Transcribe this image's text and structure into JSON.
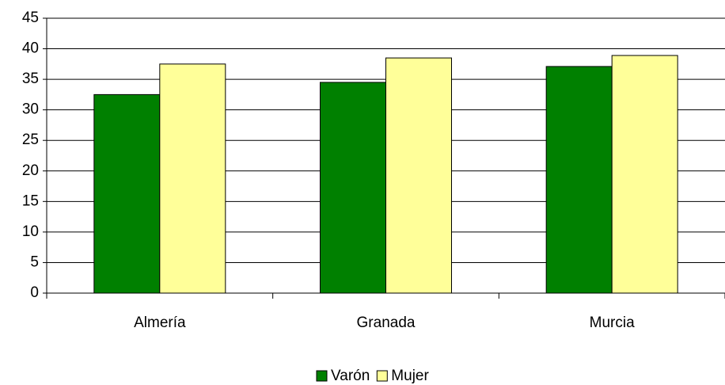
{
  "chart_data": {
    "type": "bar",
    "categories": [
      "Almería",
      "Granada",
      "Murcia"
    ],
    "series": [
      {
        "name": "Varón",
        "color": "#008000",
        "values": [
          32.5,
          34.5,
          37.1
        ]
      },
      {
        "name": "Mujer",
        "color": "#ffff99",
        "values": [
          37.5,
          38.5,
          38.9
        ]
      }
    ],
    "ylim": [
      0,
      45
    ],
    "yticks": [
      0,
      5,
      10,
      15,
      20,
      25,
      30,
      35,
      40,
      45
    ],
    "grid": true,
    "legend": "bottom"
  }
}
